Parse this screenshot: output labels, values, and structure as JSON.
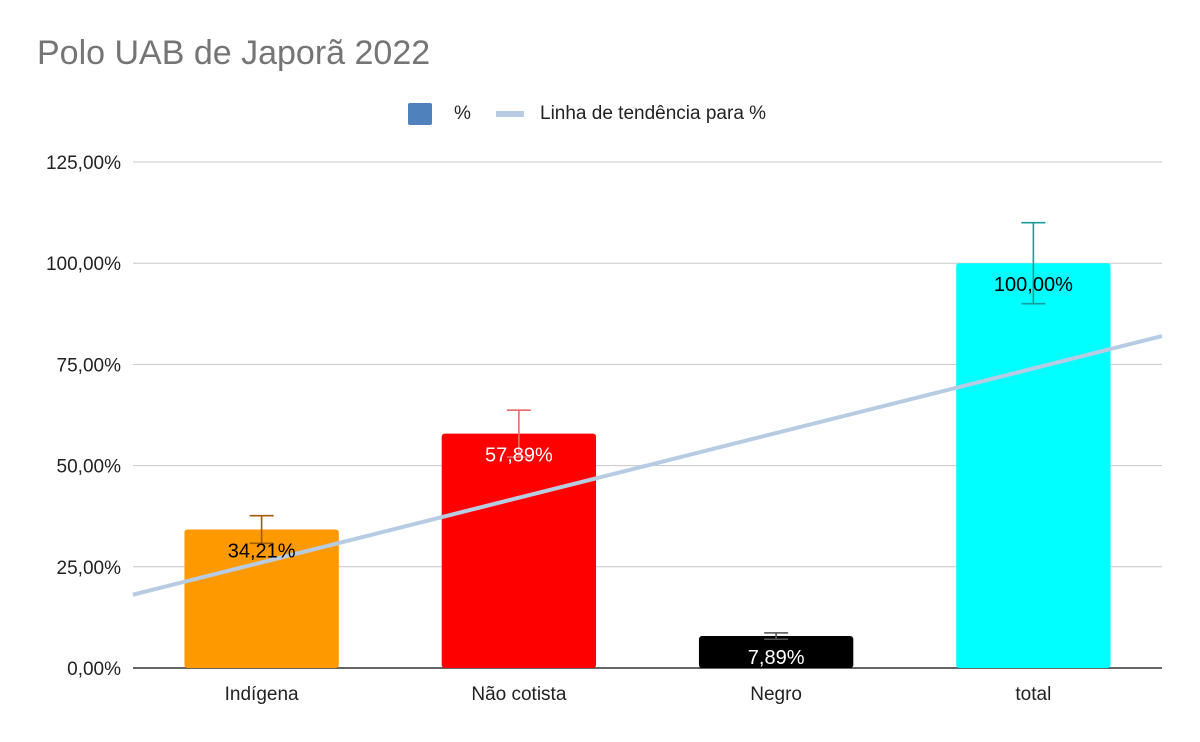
{
  "chart_data": {
    "type": "bar",
    "title": "Polo UAB de Japorã 2022",
    "categories": [
      "Indígena",
      "Não cotista",
      "Negro",
      "total"
    ],
    "series": [
      {
        "name": "%",
        "values": [
          34.21,
          57.89,
          7.89,
          100.0
        ],
        "data_labels": [
          "34,21%",
          "57,89%",
          "7,89%",
          "100,00%"
        ],
        "colors": [
          "#ff9900",
          "#ff0000",
          "#000000",
          "#00ffff"
        ],
        "label_colors": [
          "#000000",
          "#ffffff",
          "#ffffff",
          "#000000"
        ],
        "error_plus": [
          3.42,
          5.79,
          0.79,
          10.0
        ],
        "error_minus": [
          3.42,
          5.79,
          0.79,
          10.0
        ],
        "error_colors": [
          "#a15c00",
          "#e86a6a",
          "#555555",
          "#1a9a9a"
        ]
      }
    ],
    "trendline": {
      "name": "Linha de tendência para %",
      "type": "linear",
      "color": "#b7cce2",
      "start": 18.1,
      "end": 82.0
    },
    "ylim": [
      0,
      125
    ],
    "yticks": [
      0,
      25,
      50,
      75,
      100,
      125
    ],
    "ytick_labels": [
      "0,00%",
      "25,00%",
      "50,00%",
      "75,00%",
      "100,00%",
      "125,00%"
    ],
    "xlabel": "",
    "ylabel": "",
    "grid": true,
    "legend_position": "top-center"
  }
}
